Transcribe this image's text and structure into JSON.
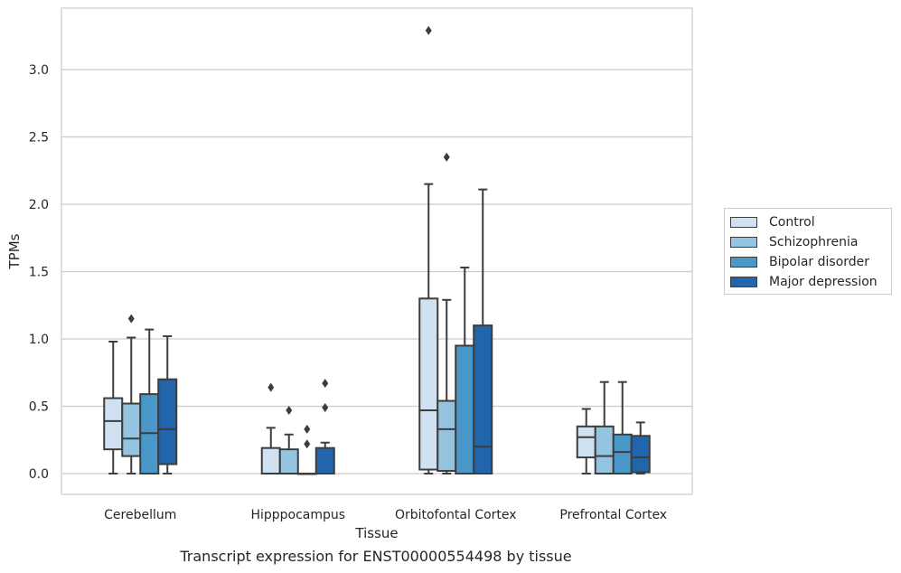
{
  "chart_data": {
    "type": "boxplot",
    "caption": "Transcript expression for ENST00000554498 by tissue",
    "xlabel": "Tissue",
    "ylabel": "TPMs",
    "ylim": [
      -0.16,
      3.46
    ],
    "yticks": [
      0.0,
      0.5,
      1.0,
      1.5,
      2.0,
      2.5,
      3.0
    ],
    "ytick_labels": [
      "0.0",
      "0.5",
      "1.0",
      "1.5",
      "2.0",
      "2.5",
      "3.0"
    ],
    "grid": "horizontal",
    "legend_position": "right",
    "categories": [
      "Cerebellum",
      "Hipppocampus",
      "Orbitofontal Cortex",
      "Prefrontal Cortex"
    ],
    "series": [
      {
        "name": "Control",
        "color": "#d0e1f2",
        "boxes": [
          {
            "whisker_low": 0.0,
            "q1": 0.18,
            "median": 0.39,
            "q3": 0.56,
            "whisker_high": 0.98,
            "outliers": []
          },
          {
            "whisker_low": 0.0,
            "q1": 0.0,
            "median": 0.0,
            "q3": 0.19,
            "whisker_high": 0.34,
            "outliers": [
              0.64
            ]
          },
          {
            "whisker_low": 0.0,
            "q1": 0.03,
            "median": 0.47,
            "q3": 1.3,
            "whisker_high": 2.15,
            "outliers": [
              3.29
            ]
          },
          {
            "whisker_low": 0.0,
            "q1": 0.12,
            "median": 0.27,
            "q3": 0.35,
            "whisker_high": 0.48,
            "outliers": []
          }
        ]
      },
      {
        "name": "Schizophrenia",
        "color": "#94c4df",
        "boxes": [
          {
            "whisker_low": 0.0,
            "q1": 0.13,
            "median": 0.26,
            "q3": 0.52,
            "whisker_high": 1.01,
            "outliers": [
              1.15
            ]
          },
          {
            "whisker_low": 0.0,
            "q1": 0.0,
            "median": 0.0,
            "q3": 0.18,
            "whisker_high": 0.29,
            "outliers": [
              0.47
            ]
          },
          {
            "whisker_low": 0.0,
            "q1": 0.02,
            "median": 0.33,
            "q3": 0.54,
            "whisker_high": 1.29,
            "outliers": [
              2.35
            ]
          },
          {
            "whisker_low": 0.0,
            "q1": 0.0,
            "median": 0.13,
            "q3": 0.35,
            "whisker_high": 0.68,
            "outliers": []
          }
        ]
      },
      {
        "name": "Bipolar disorder",
        "color": "#4a98c9",
        "boxes": [
          {
            "whisker_low": 0.0,
            "q1": 0.0,
            "median": 0.3,
            "q3": 0.59,
            "whisker_high": 1.07,
            "outliers": []
          },
          {
            "whisker_low": 0.0,
            "q1": 0.0,
            "median": 0.0,
            "q3": 0.0,
            "whisker_high": 0.0,
            "outliers": [
              0.22,
              0.33
            ]
          },
          {
            "whisker_low": 0.0,
            "q1": 0.0,
            "median": 0.0,
            "q3": 0.95,
            "whisker_high": 1.53,
            "outliers": []
          },
          {
            "whisker_low": 0.0,
            "q1": 0.0,
            "median": 0.16,
            "q3": 0.29,
            "whisker_high": 0.68,
            "outliers": []
          }
        ]
      },
      {
        "name": "Major depression",
        "color": "#2166ac",
        "boxes": [
          {
            "whisker_low": 0.0,
            "q1": 0.07,
            "median": 0.33,
            "q3": 0.7,
            "whisker_high": 1.02,
            "outliers": []
          },
          {
            "whisker_low": 0.0,
            "q1": 0.0,
            "median": 0.0,
            "q3": 0.19,
            "whisker_high": 0.23,
            "outliers": [
              0.49,
              0.67
            ]
          },
          {
            "whisker_low": 0.0,
            "q1": 0.0,
            "median": 0.2,
            "q3": 1.1,
            "whisker_high": 2.11,
            "outliers": []
          },
          {
            "whisker_low": 0.0,
            "q1": 0.01,
            "median": 0.12,
            "q3": 0.28,
            "whisker_high": 0.38,
            "outliers": []
          }
        ]
      }
    ]
  }
}
